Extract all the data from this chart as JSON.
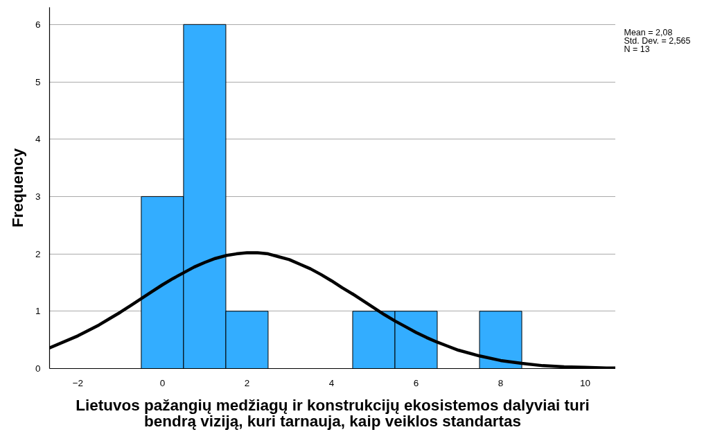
{
  "chart_data": {
    "type": "histogram",
    "xlabel": "Lietuvos pažangių medžiagų ir konstrukcijų ekosistemos dalyviai turi\nbendrą viziją, kuri tarnauja, kaip veiklos standartas",
    "ylabel": "Frequency",
    "annotations": [
      "Mean = 2,08",
      "Std. Dev. = 2,565",
      "N = 13"
    ],
    "bins": [
      -0.5,
      0.5,
      1.5,
      2.5,
      3.5,
      4.5,
      5.5,
      6.5,
      7.5,
      8.5
    ],
    "series": [
      {
        "color": "#33adff",
        "values": [
          3,
          6,
          1,
          0,
          0,
          1,
          1,
          0,
          1
        ]
      },
      {
        "type": "line",
        "color": "#000000",
        "x": [
          -2.67,
          -2,
          -1.5,
          -1.25,
          -1,
          -0.75,
          -0.5,
          -0.25,
          0,
          0.25,
          0.5,
          0.75,
          1,
          1.25,
          1.5,
          1.75,
          2,
          2.08,
          2.25,
          2.5,
          2.75,
          3,
          3.25,
          3.5,
          3.75,
          4,
          4.25,
          4.5,
          4.75,
          5,
          5.25,
          5.5,
          5.75,
          6,
          6.25,
          6.5,
          6.75,
          7,
          7.5,
          8,
          8.5,
          9,
          9.5,
          10,
          10.5,
          10.72
        ],
        "values": [
          0.36,
          0.57,
          0.76,
          0.87,
          0.98,
          1.1,
          1.22,
          1.34,
          1.46,
          1.57,
          1.67,
          1.77,
          1.85,
          1.92,
          1.97,
          2.0,
          2.02,
          2.02,
          2.02,
          2.0,
          1.95,
          1.9,
          1.82,
          1.74,
          1.64,
          1.53,
          1.41,
          1.3,
          1.18,
          1.06,
          0.94,
          0.83,
          0.73,
          0.63,
          0.54,
          0.46,
          0.39,
          0.32,
          0.22,
          0.14,
          0.09,
          0.05,
          0.03,
          0.02,
          0.01,
          0.01
        ]
      }
    ],
    "xlim": [
      -2.67,
      10.72
    ],
    "ylim": [
      0,
      6.3
    ],
    "xticks": [
      {
        "value": -2,
        "label": "−2"
      },
      0,
      2,
      4,
      6,
      8,
      10
    ],
    "yticks": [
      0,
      1,
      2,
      3,
      4,
      5,
      6
    ],
    "grid": "y"
  }
}
